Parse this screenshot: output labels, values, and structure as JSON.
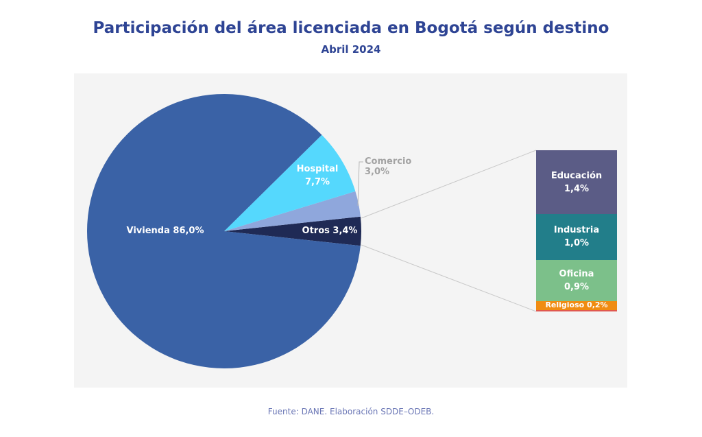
{
  "chart_data": {
    "type": "pie",
    "title": "Participación del área licenciada en Bogotá según destino",
    "subtitle": "Abril 2024",
    "slices": [
      {
        "name": "Otros",
        "label": "Otros 3,4%",
        "value": 3.4,
        "color": "#1f2a55"
      },
      {
        "name": "Comercio",
        "label": "Comercio",
        "pct": "3,0%",
        "value": 3.0,
        "color": "#8fa7dc"
      },
      {
        "name": "Hospital",
        "label": "Hospital",
        "pct": "7,7%",
        "value": 7.7,
        "color": "#55d8fd"
      },
      {
        "name": "Vivienda",
        "label": "Vivienda 86,0%",
        "value": 86.0,
        "color": "#3a62a6"
      }
    ],
    "breakdown": [
      {
        "name": "Educación",
        "pct": "1,4%",
        "value": 1.4,
        "color": "#5b5c86"
      },
      {
        "name": "Industria",
        "pct": "1,0%",
        "value": 1.0,
        "color": "#227e8a"
      },
      {
        "name": "Oficina",
        "pct": "0,9%",
        "value": 0.9,
        "color": "#7cc08a"
      },
      {
        "name": "Religioso",
        "label": "Religioso 0,2%",
        "value": 0.2,
        "color": "#f08c12"
      }
    ],
    "source": "Fuente: DANE. Elaboración SDDE–ODEB."
  }
}
